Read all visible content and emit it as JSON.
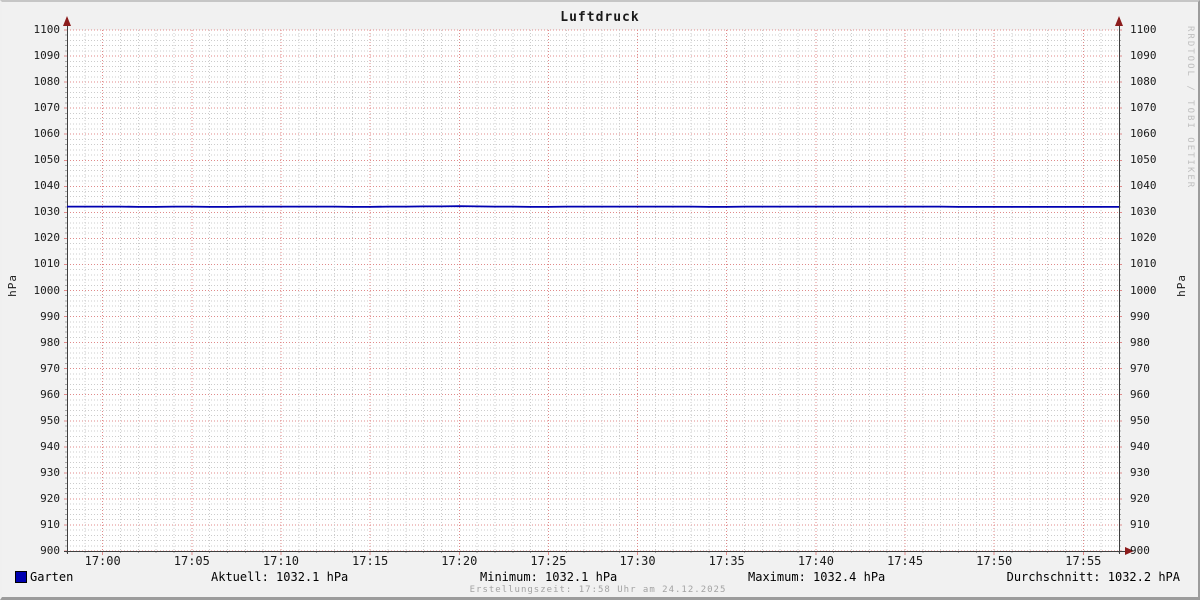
{
  "title": "Luftdruck",
  "y_axis": {
    "unit_left": "hPa",
    "unit_right": "hPa",
    "min": 900,
    "max": 1100,
    "major_step": 10,
    "minor_step": 2
  },
  "x_axis": {
    "labels": [
      "17:00",
      "17:05",
      "17:10",
      "17:15",
      "17:20",
      "17:25",
      "17:30",
      "17:35",
      "17:40",
      "17:45",
      "17:50",
      "17:55"
    ],
    "start_time": "16:58",
    "end_time": "17:57",
    "minor_step_minutes": 1,
    "major_step_minutes": 5
  },
  "watermark": "RRDTOOL / TOBI OETIKER",
  "legend": {
    "series_label": "Garten",
    "aktuell": "Aktuell: 1032.1 hPa",
    "minimum": "Minimum: 1032.1 hPa",
    "maximum": "Maximum: 1032.4 hPa",
    "durchschnitt": "Durchschnitt: 1032.2 hPA"
  },
  "footer": "Erstellungszeit: 17:58 Uhr am 24.12.2025",
  "colors": {
    "background": "#f1f1f1",
    "canvas": "#ffffff",
    "line": "#0000b0",
    "legend_swatch": "#0000b0",
    "grid_minor": "#cccccc",
    "grid_major": "#e08a8a",
    "axis": "#3f3f3f",
    "arrow": "#8c1c1c",
    "footer_text": "#a3a3a3",
    "watermark_text": "#bfbfbf"
  },
  "chart_data": {
    "type": "line",
    "title": "Luftdruck",
    "xlabel": "",
    "ylabel": "hPa",
    "ylim": [
      900,
      1100
    ],
    "grid": "on",
    "legend_position": "bottom",
    "x_start": "16:58",
    "x_step_minutes": 1,
    "x_tick_labels": [
      "17:00",
      "17:05",
      "17:10",
      "17:15",
      "17:20",
      "17:25",
      "17:30",
      "17:35",
      "17:40",
      "17:45",
      "17:50",
      "17:55"
    ],
    "series": [
      {
        "name": "Garten",
        "color": "#0000b0",
        "values": [
          1032.2,
          1032.2,
          1032.2,
          1032.2,
          1032.1,
          1032.1,
          1032.2,
          1032.2,
          1032.1,
          1032.1,
          1032.2,
          1032.2,
          1032.2,
          1032.2,
          1032.2,
          1032.2,
          1032.1,
          1032.1,
          1032.2,
          1032.2,
          1032.3,
          1032.3,
          1032.4,
          1032.3,
          1032.2,
          1032.2,
          1032.1,
          1032.1,
          1032.2,
          1032.2,
          1032.2,
          1032.2,
          1032.2,
          1032.2,
          1032.2,
          1032.2,
          1032.1,
          1032.1,
          1032.2,
          1032.2,
          1032.2,
          1032.2,
          1032.2,
          1032.2,
          1032.2,
          1032.2,
          1032.2,
          1032.2,
          1032.2,
          1032.2,
          1032.1,
          1032.1,
          1032.1,
          1032.1,
          1032.1,
          1032.1,
          1032.1,
          1032.1,
          1032.1,
          1032.1
        ]
      }
    ],
    "stats": {
      "aktuell": 1032.1,
      "minimum": 1032.1,
      "maximum": 1032.4,
      "durchschnitt": 1032.2
    }
  }
}
